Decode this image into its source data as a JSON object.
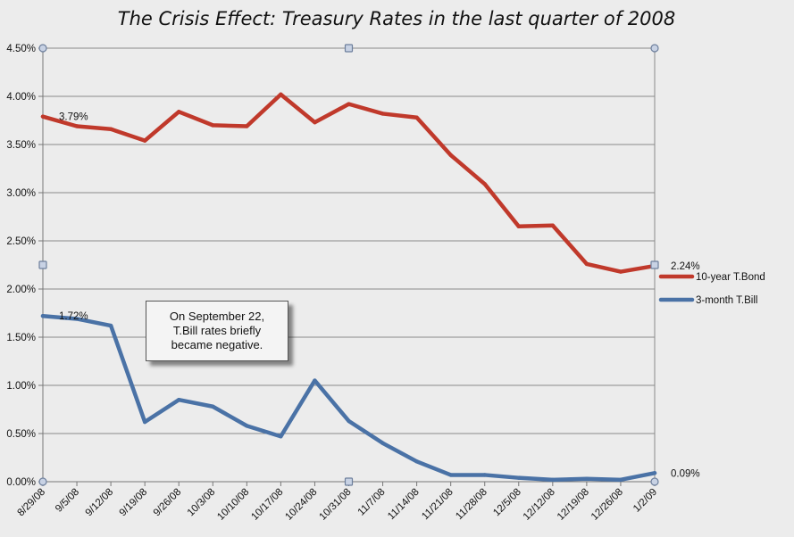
{
  "chart_data": {
    "type": "line",
    "title": "The Crisis Effect: Treasury Rates in the last quarter of 2008",
    "xlabel": "",
    "ylabel": "",
    "categories": [
      "8/29/08",
      "9/5/08",
      "9/12/08",
      "9/19/08",
      "9/26/08",
      "10/3/08",
      "10/10/08",
      "10/17/08",
      "10/24/08",
      "10/31/08",
      "11/7/08",
      "11/14/08",
      "11/21/08",
      "11/28/08",
      "12/5/08",
      "12/12/08",
      "12/19/08",
      "12/26/08",
      "1/2/09"
    ],
    "y_ticks": [
      "0.00%",
      "0.50%",
      "1.00%",
      "1.50%",
      "2.00%",
      "2.50%",
      "3.00%",
      "3.50%",
      "4.00%",
      "4.50%"
    ],
    "ylim": [
      0,
      4.5
    ],
    "grid": "horizontal",
    "legend_position": "right",
    "series": [
      {
        "name": "10-year T.Bond",
        "color": "#c0392b",
        "values": [
          3.79,
          3.69,
          3.66,
          3.54,
          3.84,
          3.7,
          3.69,
          4.02,
          3.73,
          3.92,
          3.82,
          3.78,
          3.39,
          3.09,
          2.65,
          2.66,
          2.26,
          2.18,
          2.24
        ],
        "labels": [
          {
            "index": 0,
            "text": "3.79%"
          },
          {
            "index": 18,
            "text": "2.24%"
          }
        ]
      },
      {
        "name": "3-month T.Bill",
        "color": "#4a72a6",
        "values": [
          1.72,
          1.69,
          1.62,
          0.62,
          0.85,
          0.78,
          0.58,
          0.47,
          1.05,
          0.63,
          0.4,
          0.21,
          0.07,
          0.07,
          0.04,
          0.02,
          0.03,
          0.02,
          0.09
        ],
        "labels": [
          {
            "index": 0,
            "text": "1.72%"
          },
          {
            "index": 18,
            "text": "0.09%"
          }
        ]
      }
    ],
    "annotation": "On September 22,\nT.Bill rates briefly\nbecame negative."
  }
}
